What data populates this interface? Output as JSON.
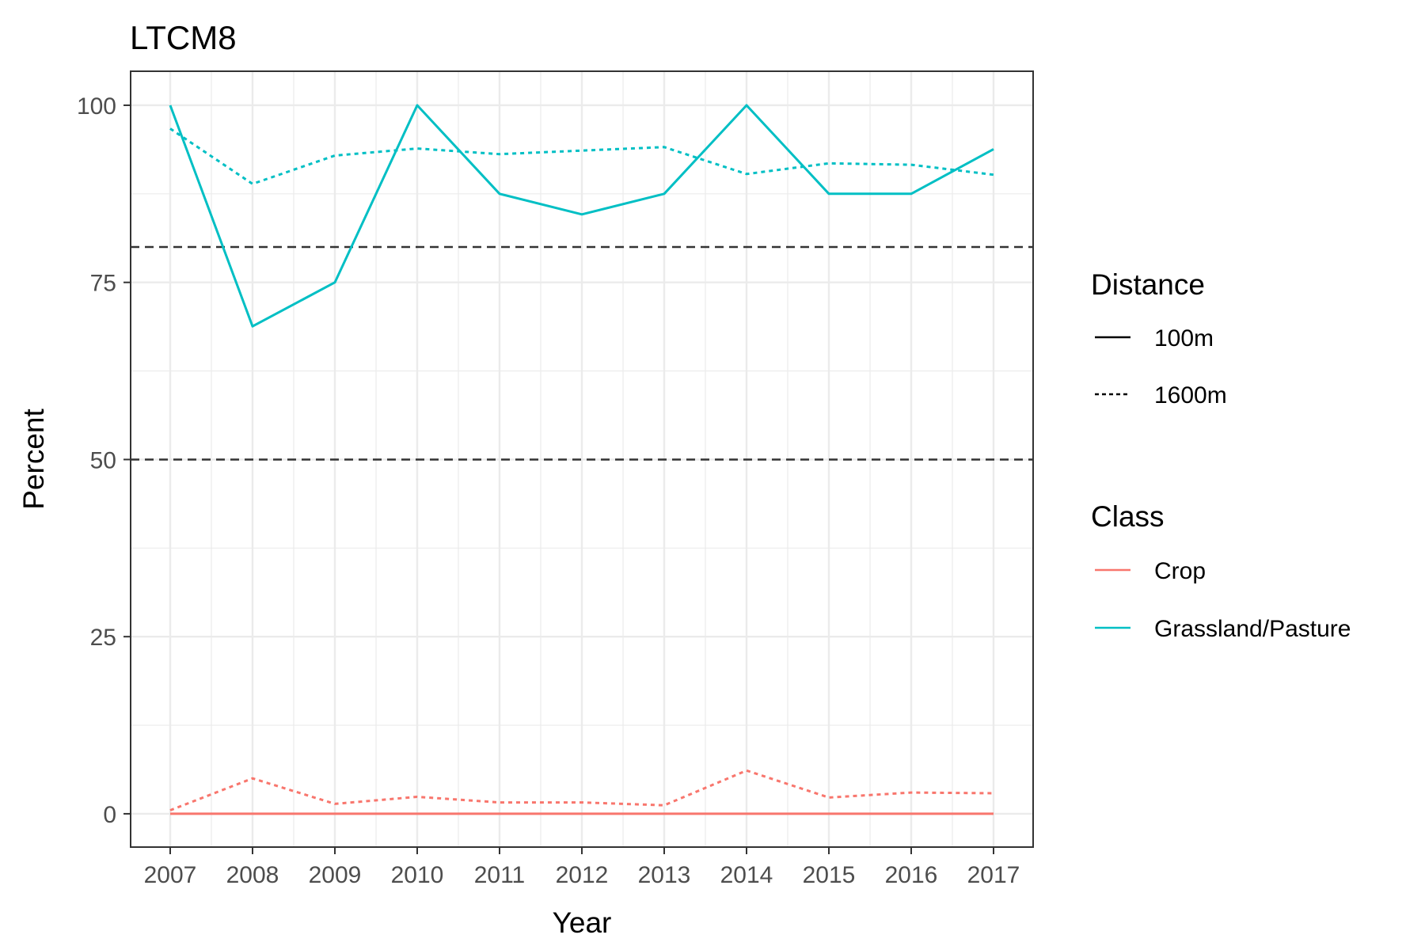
{
  "chart_data": {
    "type": "line",
    "title": "LTCM8",
    "xlabel": "Year",
    "ylabel": "Percent",
    "x": [
      2007,
      2008,
      2009,
      2010,
      2011,
      2012,
      2013,
      2014,
      2015,
      2016,
      2017
    ],
    "x_tick_labels": [
      "2007",
      "2008",
      "2009",
      "2010",
      "2011",
      "2012",
      "2013",
      "2014",
      "2015",
      "2016",
      "2017"
    ],
    "y_ticks": [
      0,
      25,
      50,
      75,
      100
    ],
    "y_tick_labels": [
      "0",
      "25",
      "50",
      "75",
      "100"
    ],
    "ylim": [
      -4.7,
      104.8
    ],
    "grid": true,
    "legend_position": "right",
    "series": [
      {
        "name": "Grassland/Pasture",
        "class": "Grassland/Pasture",
        "distance": "100m",
        "values": [
          100,
          68.8,
          75,
          100,
          87.5,
          84.6,
          87.5,
          100,
          87.5,
          87.5,
          93.8
        ]
      },
      {
        "name": "Grassland/Pasture",
        "class": "Grassland/Pasture",
        "distance": "1600m",
        "values": [
          96.7,
          88.9,
          92.9,
          93.9,
          93.1,
          93.6,
          94.1,
          90.3,
          91.8,
          91.6,
          90.2
        ]
      },
      {
        "name": "Crop",
        "class": "Crop",
        "distance": "100m",
        "values": [
          0,
          0,
          0,
          0,
          0,
          0,
          0,
          0,
          0,
          0,
          0
        ]
      },
      {
        "name": "Crop",
        "class": "Crop",
        "distance": "1600m",
        "values": [
          0.5,
          5.0,
          1.4,
          2.4,
          1.6,
          1.6,
          1.2,
          6.1,
          2.3,
          3.0,
          2.9
        ]
      }
    ],
    "reference_lines": [
      {
        "y": 80,
        "style": "dashed"
      },
      {
        "y": 50,
        "style": "dashed"
      }
    ],
    "legends": {
      "distance": {
        "title": "Distance",
        "items": [
          {
            "label": "100m",
            "style": "solid"
          },
          {
            "label": "1600m",
            "style": "dotted"
          }
        ]
      },
      "class": {
        "title": "Class",
        "items": [
          {
            "label": "Crop",
            "color": "#f8766d"
          },
          {
            "label": "Grassland/Pasture",
            "color": "#00bfc4"
          }
        ]
      }
    },
    "colors": {
      "Crop": "#f8766d",
      "Grassland/Pasture": "#00bfc4",
      "reference_line": "#333333",
      "grid": "#ebebeb",
      "panel_border": "#333333"
    }
  }
}
